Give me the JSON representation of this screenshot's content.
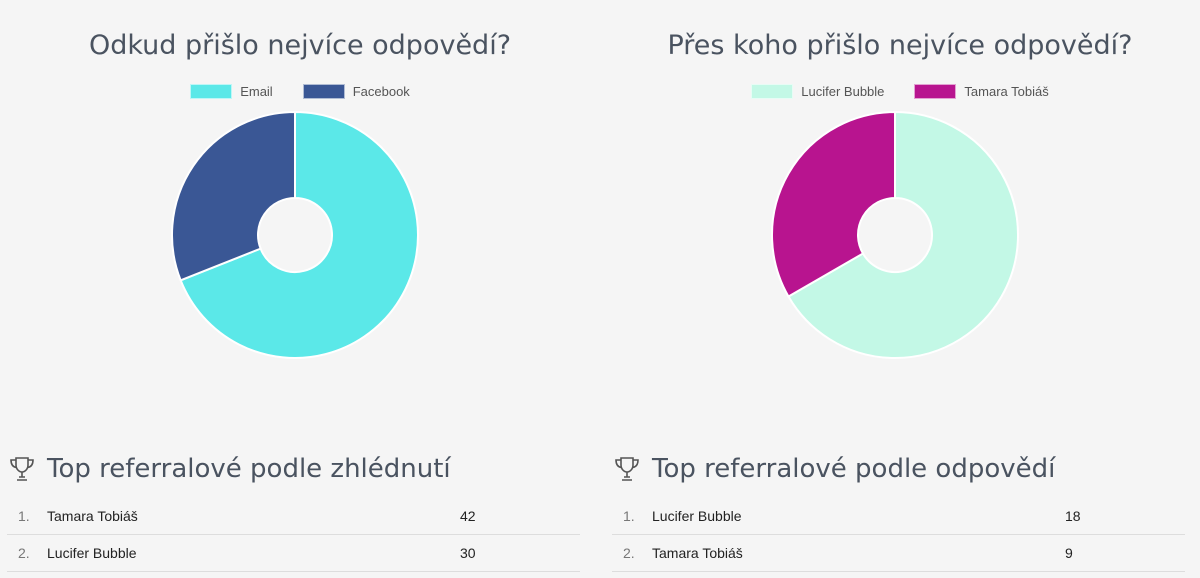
{
  "chart_data": [
    {
      "type": "pie",
      "title": "Odkud přišlo nejvíce odpovědí?",
      "categories": [
        "Email",
        "Facebook"
      ],
      "values": [
        69,
        31
      ],
      "colors": [
        "#5be8e8",
        "#3a5795"
      ],
      "legend": "top"
    },
    {
      "type": "pie",
      "title": "Přes koho přišlo nejvíce odpovědí?",
      "categories": [
        "Lucifer Bubble",
        "Tamara Tobiáš"
      ],
      "values": [
        18,
        9
      ],
      "colors": [
        "#c3f8e6",
        "#b8148f"
      ],
      "legend": "top"
    }
  ],
  "lists": [
    {
      "title": "Top referralové podle zhlédnutí",
      "icon": "trophy-icon",
      "rows": [
        {
          "rank": "1.",
          "name": "Tamara Tobiáš",
          "value": "42"
        },
        {
          "rank": "2.",
          "name": "Lucifer Bubble",
          "value": "30"
        }
      ]
    },
    {
      "title": "Top referralové podle odpovědí",
      "icon": "trophy-icon",
      "rows": [
        {
          "rank": "1.",
          "name": "Lucifer Bubble",
          "value": "18"
        },
        {
          "rank": "2.",
          "name": "Tamara Tobiáš",
          "value": "9"
        }
      ]
    }
  ]
}
